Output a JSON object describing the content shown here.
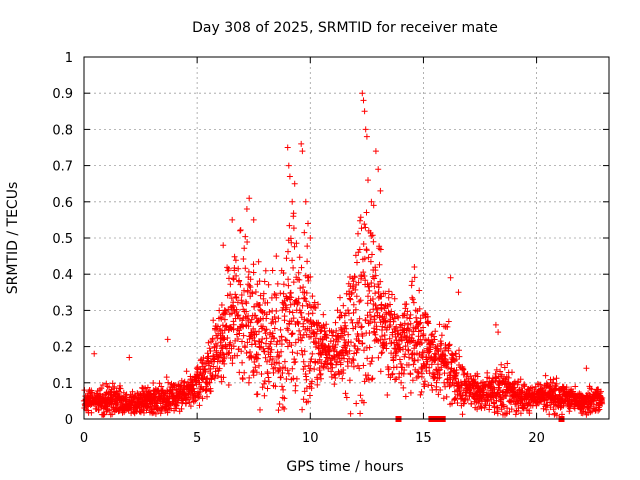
{
  "chart_data": {
    "type": "scatter",
    "title": "Day 308 of 2025, SRMTID for receiver mate",
    "xlabel": "GPS time / hours",
    "ylabel": "SRMTID / TECUs",
    "xlim": [
      0,
      23.2
    ],
    "ylim": [
      0,
      1
    ],
    "xticks": [
      "0",
      "5",
      "10",
      "15",
      "20"
    ],
    "xtick_values": [
      0,
      5,
      10,
      15,
      20
    ],
    "yticks": [
      "0",
      "0.1",
      "0.2",
      "0.3",
      "0.4",
      "0.5",
      "0.6",
      "0.7",
      "0.8",
      "0.9",
      "1"
    ],
    "ytick_values": [
      0,
      0.1,
      0.2,
      0.3,
      0.4,
      0.5,
      0.6,
      0.7,
      0.8,
      0.9,
      1
    ],
    "grid": true,
    "marker": "+",
    "series": [
      {
        "name": "SRMTID",
        "color": "#ff0000",
        "envelope_hours": [
          0,
          0.5,
          1,
          1.5,
          2,
          2.5,
          3,
          3.5,
          4,
          4.5,
          5,
          5.5,
          6,
          6.5,
          7,
          7.5,
          8,
          8.5,
          9,
          9.5,
          10,
          10.5,
          11,
          11.5,
          12,
          12.5,
          13,
          13.5,
          14,
          14.5,
          15,
          15.5,
          16,
          16.5,
          17,
          17.5,
          18,
          18.5,
          19,
          19.5,
          20,
          20.5,
          21,
          21.5,
          22,
          22.5,
          22.9
        ],
        "envelope_median": [
          0.05,
          0.05,
          0.05,
          0.05,
          0.04,
          0.05,
          0.05,
          0.06,
          0.06,
          0.07,
          0.1,
          0.14,
          0.2,
          0.26,
          0.28,
          0.26,
          0.22,
          0.2,
          0.26,
          0.3,
          0.22,
          0.18,
          0.18,
          0.22,
          0.3,
          0.36,
          0.3,
          0.22,
          0.2,
          0.22,
          0.2,
          0.16,
          0.17,
          0.1,
          0.08,
          0.07,
          0.07,
          0.1,
          0.07,
          0.06,
          0.06,
          0.07,
          0.06,
          0.06,
          0.05,
          0.05,
          0.05
        ],
        "envelope_spread": [
          0.02,
          0.02,
          0.03,
          0.03,
          0.02,
          0.02,
          0.03,
          0.03,
          0.03,
          0.03,
          0.04,
          0.05,
          0.08,
          0.11,
          0.14,
          0.13,
          0.11,
          0.12,
          0.18,
          0.2,
          0.12,
          0.06,
          0.05,
          0.1,
          0.2,
          0.2,
          0.14,
          0.08,
          0.08,
          0.1,
          0.08,
          0.06,
          0.07,
          0.05,
          0.04,
          0.03,
          0.03,
          0.06,
          0.03,
          0.03,
          0.02,
          0.03,
          0.03,
          0.02,
          0.02,
          0.03,
          0.02
        ],
        "peak_points": [
          [
            0.45,
            0.18
          ],
          [
            2.0,
            0.17
          ],
          [
            3.7,
            0.22
          ],
          [
            6.15,
            0.48
          ],
          [
            6.55,
            0.55
          ],
          [
            6.9,
            0.52
          ],
          [
            7.2,
            0.58
          ],
          [
            7.3,
            0.61
          ],
          [
            7.5,
            0.55
          ],
          [
            8.5,
            0.45
          ],
          [
            9.0,
            0.75
          ],
          [
            9.05,
            0.7
          ],
          [
            9.1,
            0.67
          ],
          [
            9.2,
            0.6
          ],
          [
            9.25,
            0.56
          ],
          [
            9.6,
            0.76
          ],
          [
            9.65,
            0.74
          ],
          [
            9.8,
            0.6
          ],
          [
            9.9,
            0.54
          ],
          [
            10.0,
            0.5
          ],
          [
            12.3,
            0.9
          ],
          [
            12.35,
            0.88
          ],
          [
            12.4,
            0.85
          ],
          [
            12.45,
            0.8
          ],
          [
            12.5,
            0.78
          ],
          [
            12.55,
            0.66
          ],
          [
            12.7,
            0.6
          ],
          [
            12.8,
            0.59
          ],
          [
            12.9,
            0.74
          ],
          [
            13.0,
            0.69
          ],
          [
            13.1,
            0.63
          ],
          [
            14.5,
            0.38
          ],
          [
            14.6,
            0.42
          ],
          [
            15.2,
            0.27
          ],
          [
            16.2,
            0.39
          ],
          [
            16.55,
            0.35
          ],
          [
            18.2,
            0.26
          ],
          [
            18.3,
            0.24
          ],
          [
            19.3,
            0.11
          ],
          [
            20.4,
            0.12
          ],
          [
            22.2,
            0.14
          ]
        ]
      },
      {
        "name": "zero-level markers",
        "color": "#ff0000",
        "points": [
          [
            13.9,
            0
          ],
          [
            15.35,
            0
          ],
          [
            15.45,
            0
          ],
          [
            15.55,
            0
          ],
          [
            15.65,
            0
          ],
          [
            15.75,
            0
          ],
          [
            15.85,
            0
          ],
          [
            21.1,
            0
          ]
        ]
      }
    ]
  }
}
